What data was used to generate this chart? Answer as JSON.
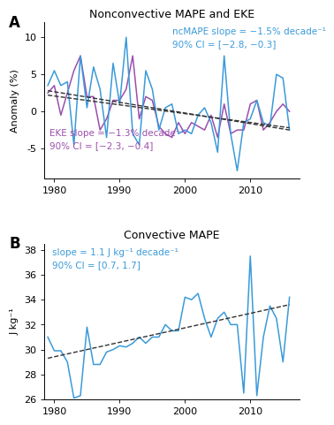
{
  "title_A": "Nonconvective MAPE and EKE",
  "title_B": "Convective MAPE",
  "ylabel_A": "Anomaly (%)",
  "ylabel_B": "J kg⁻¹",
  "years_A": [
    1979,
    1980,
    1981,
    1982,
    1983,
    1984,
    1985,
    1986,
    1987,
    1988,
    1989,
    1990,
    1991,
    1992,
    1993,
    1994,
    1995,
    1996,
    1997,
    1998,
    1999,
    2000,
    2001,
    2002,
    2003,
    2004,
    2005,
    2006,
    2007,
    2008,
    2009,
    2010,
    2011,
    2012,
    2013,
    2014,
    2015,
    2016
  ],
  "ncMAPE": [
    3.5,
    5.5,
    3.5,
    4.0,
    -4.5,
    7.5,
    0.5,
    6.0,
    3.0,
    -3.5,
    6.5,
    1.0,
    10.0,
    -3.0,
    -4.5,
    5.5,
    3.0,
    -2.5,
    0.5,
    1.0,
    -3.0,
    -2.5,
    -3.0,
    -0.5,
    0.5,
    -1.5,
    -5.5,
    7.5,
    -3.0,
    -8.0,
    -1.5,
    -1.0,
    1.5,
    -1.5,
    -2.0,
    5.0,
    4.5,
    -2.5
  ],
  "EKE": [
    2.5,
    3.5,
    -0.5,
    2.5,
    5.5,
    7.5,
    2.0,
    2.0,
    -2.5,
    -1.0,
    1.5,
    1.5,
    3.0,
    7.5,
    -1.0,
    2.0,
    1.5,
    -2.0,
    -3.0,
    -3.5,
    -1.5,
    -3.0,
    -1.5,
    -2.0,
    -2.5,
    -0.5,
    -3.5,
    1.0,
    -3.0,
    -2.5,
    -2.5,
    1.0,
    1.5,
    -2.5,
    -1.5,
    0.0,
    1.0,
    0.0
  ],
  "ncMAPE_trend_x": [
    1979,
    2016
  ],
  "ncMAPE_trend_y": [
    2.8,
    -2.5
  ],
  "EKE_trend_x": [
    1979,
    2016
  ],
  "EKE_trend_y": [
    2.2,
    -2.2
  ],
  "ylim_A": [
    -9,
    12
  ],
  "yticks_A": [
    -5,
    0,
    5,
    10
  ],
  "years_B": [
    1979,
    1980,
    1981,
    1982,
    1983,
    1984,
    1985,
    1986,
    1987,
    1988,
    1989,
    1990,
    1991,
    1992,
    1993,
    1994,
    1995,
    1996,
    1997,
    1998,
    1999,
    2000,
    2001,
    2002,
    2003,
    2004,
    2005,
    2006,
    2007,
    2008,
    2009,
    2010,
    2011,
    2012,
    2013,
    2014,
    2015,
    2016
  ],
  "cMAPE": [
    31.0,
    29.9,
    29.9,
    29.0,
    26.1,
    26.3,
    31.8,
    28.8,
    28.8,
    29.8,
    30.0,
    30.3,
    30.2,
    30.5,
    31.0,
    30.5,
    31.0,
    31.0,
    32.0,
    31.5,
    31.5,
    34.2,
    34.0,
    34.5,
    32.5,
    31.0,
    32.5,
    33.0,
    32.0,
    32.0,
    26.5,
    37.5,
    26.3,
    31.0,
    33.5,
    32.5,
    29.0,
    34.2
  ],
  "cMAPE_trend_x": [
    1979,
    2016
  ],
  "cMAPE_trend_y": [
    29.3,
    33.6
  ],
  "ylim_B": [
    26,
    38.5
  ],
  "yticks_B": [
    26,
    28,
    30,
    32,
    34,
    36,
    38
  ],
  "xticks": [
    1980,
    1990,
    2000,
    2010
  ],
  "xlim": [
    1978.5,
    2017.5
  ],
  "color_ncMAPE": "#3a9ad9",
  "color_EKE": "#9b4fad",
  "color_cMAPE": "#3a9ad9",
  "color_trend": "#333333",
  "text_ncMAPE": "ncMAPE slope = −1.5% decade⁻¹\n90% CI = [−2.8, −0.3]",
  "text_EKE": "EKE slope = −1.3% decade⁻¹\n90% CI = [−2.3, −0.4]",
  "text_cMAPE": "slope = 1.1 J kg⁻¹ decade⁻¹\n90% CI = [0.7, 1.7]",
  "label_A": "A",
  "label_B": "B",
  "fontsize_title": 9,
  "fontsize_label": 12,
  "fontsize_tick": 8,
  "fontsize_text": 7.5
}
